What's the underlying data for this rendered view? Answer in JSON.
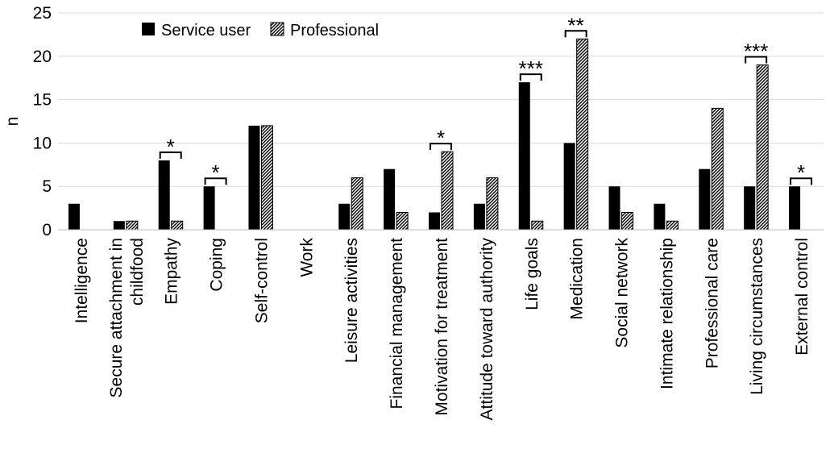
{
  "chart_data": {
    "type": "bar",
    "ylabel": "n",
    "ylim": [
      0,
      25
    ],
    "yticks": [
      0,
      5,
      10,
      15,
      20,
      25
    ],
    "grid": true,
    "legend_position": "top-left",
    "categories": [
      "Intelligence",
      "Secure attachment in childfood",
      "Empathy",
      "Coping",
      "Self-control",
      "Work",
      "Leisure activities",
      "Financial management",
      "Motivation for treatment",
      "Attitude toward authority",
      "Life goals",
      "Medication",
      "Social network",
      "Intimate relationship",
      "Professional care",
      "Living circumstances",
      "External control"
    ],
    "series": [
      {
        "name": "Service user",
        "color": "#000000",
        "values": [
          3,
          1,
          8,
          5,
          12,
          0,
          3,
          7,
          2,
          3,
          17,
          10,
          5,
          3,
          7,
          5,
          5
        ]
      },
      {
        "name": "Professional",
        "color": "#000000",
        "pattern": "diagonal-hatch",
        "values": [
          0,
          1,
          1,
          0,
          12,
          0,
          6,
          2,
          9,
          6,
          1,
          22,
          2,
          1,
          14,
          19,
          0
        ]
      }
    ],
    "significance": [
      {
        "category": "Empathy",
        "label": "*"
      },
      {
        "category": "Coping",
        "label": "*"
      },
      {
        "category": "Motivation for treatment",
        "label": "*"
      },
      {
        "category": "Life goals",
        "label": "***"
      },
      {
        "category": "Medication",
        "label": "**"
      },
      {
        "category": "Living circumstances",
        "label": "***"
      },
      {
        "category": "External control",
        "label": "*"
      }
    ]
  }
}
